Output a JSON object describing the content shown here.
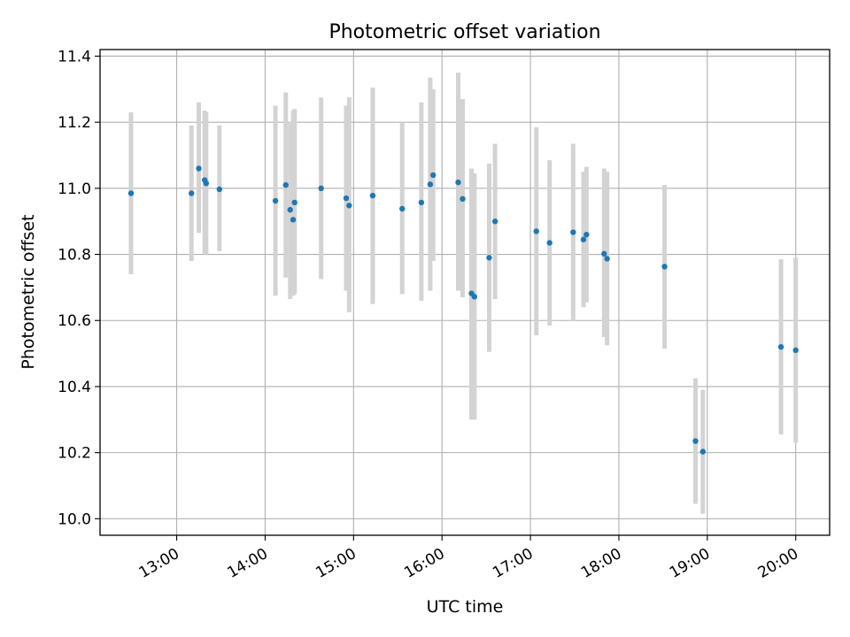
{
  "chart_data": {
    "type": "scatter",
    "title": "Photometric offset variation",
    "xlabel": "UTC time",
    "ylabel": "Photometric offset",
    "xlim": [
      "12:08",
      "20:23"
    ],
    "ylim": [
      9.95,
      11.42
    ],
    "x_ticks": [
      "13:00",
      "14:00",
      "15:00",
      "16:00",
      "17:00",
      "18:00",
      "19:00",
      "20:00"
    ],
    "y_ticks": [
      "10.0",
      "10.2",
      "10.4",
      "10.6",
      "10.8",
      "11.0",
      "11.2",
      "11.4"
    ],
    "grid": true,
    "colors": {
      "point": "#1f77b4",
      "errorbar": "#d3d3d3",
      "grid": "#b0b0b0"
    },
    "points": [
      {
        "time": "12:29",
        "y": 10.985,
        "low": 10.74,
        "high": 11.23
      },
      {
        "time": "13:10",
        "y": 10.985,
        "low": 10.78,
        "high": 11.19
      },
      {
        "time": "13:15",
        "y": 11.06,
        "low": 10.865,
        "high": 11.26
      },
      {
        "time": "13:19",
        "y": 11.025,
        "low": 10.8,
        "high": 11.235
      },
      {
        "time": "13:20",
        "y": 11.015,
        "low": 10.8,
        "high": 11.23
      },
      {
        "time": "13:29",
        "y": 10.997,
        "low": 10.81,
        "high": 11.19
      },
      {
        "time": "14:07",
        "y": 10.962,
        "low": 10.675,
        "high": 11.25
      },
      {
        "time": "14:14",
        "y": 11.01,
        "low": 10.73,
        "high": 11.29
      },
      {
        "time": "14:17",
        "y": 10.935,
        "low": 10.665,
        "high": 11.2
      },
      {
        "time": "14:19",
        "y": 10.905,
        "low": 10.675,
        "high": 11.235
      },
      {
        "time": "14:20",
        "y": 10.957,
        "low": 10.68,
        "high": 11.24
      },
      {
        "time": "14:38",
        "y": 11.0,
        "low": 10.725,
        "high": 11.275
      },
      {
        "time": "14:55",
        "y": 10.97,
        "low": 10.69,
        "high": 11.25
      },
      {
        "time": "14:57",
        "y": 10.948,
        "low": 10.625,
        "high": 11.275
      },
      {
        "time": "15:13",
        "y": 10.978,
        "low": 10.65,
        "high": 11.305
      },
      {
        "time": "15:33",
        "y": 10.938,
        "low": 10.68,
        "high": 11.2
      },
      {
        "time": "15:46",
        "y": 10.957,
        "low": 10.66,
        "high": 11.26
      },
      {
        "time": "15:52",
        "y": 11.012,
        "low": 10.69,
        "high": 11.335
      },
      {
        "time": "15:54",
        "y": 11.04,
        "low": 10.78,
        "high": 11.3
      },
      {
        "time": "16:11",
        "y": 11.018,
        "low": 10.69,
        "high": 11.35
      },
      {
        "time": "16:14",
        "y": 10.968,
        "low": 10.67,
        "high": 11.27
      },
      {
        "time": "16:20",
        "y": 10.682,
        "low": 10.3,
        "high": 11.06
      },
      {
        "time": "16:22",
        "y": 10.672,
        "low": 10.3,
        "high": 11.045
      },
      {
        "time": "16:32",
        "y": 10.79,
        "low": 10.505,
        "high": 11.075
      },
      {
        "time": "16:36",
        "y": 10.9,
        "low": 10.665,
        "high": 11.135
      },
      {
        "time": "17:04",
        "y": 10.87,
        "low": 10.555,
        "high": 11.185
      },
      {
        "time": "17:13",
        "y": 10.835,
        "low": 10.585,
        "high": 11.085
      },
      {
        "time": "17:29",
        "y": 10.867,
        "low": 10.6,
        "high": 11.135
      },
      {
        "time": "17:36",
        "y": 10.845,
        "low": 10.64,
        "high": 11.05
      },
      {
        "time": "17:38",
        "y": 10.86,
        "low": 10.655,
        "high": 11.065
      },
      {
        "time": "17:50",
        "y": 10.802,
        "low": 10.55,
        "high": 11.06
      },
      {
        "time": "17:52",
        "y": 10.787,
        "low": 10.525,
        "high": 11.05
      },
      {
        "time": "18:31",
        "y": 10.763,
        "low": 10.515,
        "high": 11.01
      },
      {
        "time": "18:52",
        "y": 10.235,
        "low": 10.045,
        "high": 10.425
      },
      {
        "time": "18:57",
        "y": 10.203,
        "low": 10.015,
        "high": 10.39
      },
      {
        "time": "19:50",
        "y": 10.52,
        "low": 10.255,
        "high": 10.785
      },
      {
        "time": "20:00",
        "y": 10.51,
        "low": 10.23,
        "high": 10.79
      }
    ]
  }
}
